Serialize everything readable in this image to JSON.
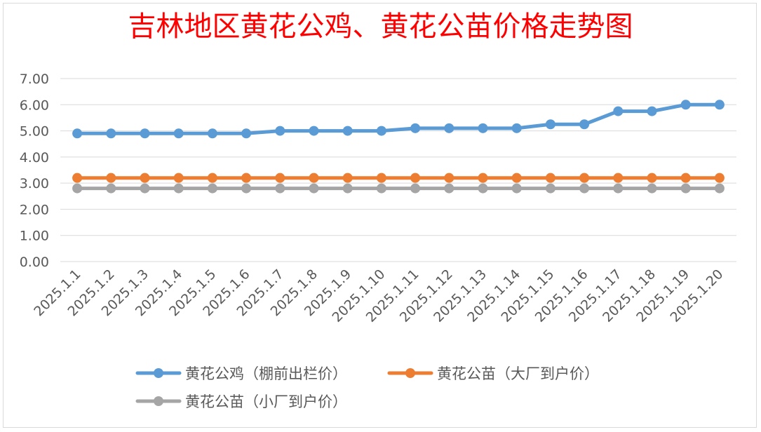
{
  "chart_data": {
    "type": "line",
    "title": "吉林地区黄花公鸡、黄花公苗价格走势图",
    "xlabel": "",
    "ylabel": "",
    "categories": [
      "2025.1.1",
      "2025.1.2",
      "2025.1.3",
      "2025.1.4",
      "2025.1.5",
      "2025.1.6",
      "2025.1.7",
      "2025.1.8",
      "2025.1.9",
      "2025.1.10",
      "2025.1.11",
      "2025.1.12",
      "2025.1.13",
      "2025.1.14",
      "2025.1.15",
      "2025.1.16",
      "2025.1.17",
      "2025.1.18",
      "2025.1.19",
      "2025.1.20"
    ],
    "ylim": [
      0,
      7
    ],
    "yticks": [
      "0.00",
      "1.00",
      "2.00",
      "3.00",
      "4.00",
      "5.00",
      "6.00",
      "7.00"
    ],
    "grid": true,
    "legend_position": "bottom",
    "series": [
      {
        "name": "黄花公鸡（棚前出栏价）",
        "color": "#5b9bd5",
        "values": [
          4.9,
          4.9,
          4.9,
          4.9,
          4.9,
          4.9,
          5.0,
          5.0,
          5.0,
          5.0,
          5.1,
          5.1,
          5.1,
          5.1,
          5.25,
          5.25,
          5.75,
          5.75,
          6.0,
          6.0
        ]
      },
      {
        "name": "黄花公苗（大厂到户价）",
        "color": "#ed7d31",
        "values": [
          3.2,
          3.2,
          3.2,
          3.2,
          3.2,
          3.2,
          3.2,
          3.2,
          3.2,
          3.2,
          3.2,
          3.2,
          3.2,
          3.2,
          3.2,
          3.2,
          3.2,
          3.2,
          3.2,
          3.2
        ]
      },
      {
        "name": "黄花公苗（小厂到户价）",
        "color": "#a5a5a5",
        "values": [
          2.8,
          2.8,
          2.8,
          2.8,
          2.8,
          2.8,
          2.8,
          2.8,
          2.8,
          2.8,
          2.8,
          2.8,
          2.8,
          2.8,
          2.8,
          2.8,
          2.8,
          2.8,
          2.8,
          2.8
        ]
      }
    ]
  }
}
